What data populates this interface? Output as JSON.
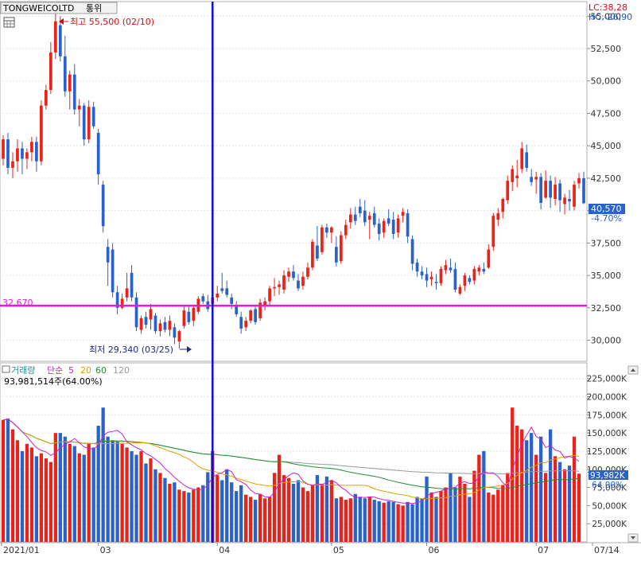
{
  "header": {
    "symbol": "TONGWEICOLTD",
    "currency": "통위",
    "lc_label": "LC:38,28",
    "hc_label": "HC:-26,90",
    "high_annotation": "최고 55,500 (02/10)",
    "low_annotation": "최저 29,340 (03/25)",
    "hline_label": "32,670",
    "last_price_label": "40,570",
    "last_change_label": "-4.70%"
  },
  "volume_header": {
    "title": "거래량",
    "ma_type": "단순",
    "ma_periods": [
      "5",
      "20",
      "60",
      "120"
    ],
    "summary": "93,981,514주(64.00%)",
    "last_volume_label": "93,982K",
    "last_pct_label": "64.00%"
  },
  "colors": {
    "up": "#e8231c",
    "down": "#2a62c9",
    "hline": "#e619d6",
    "vline": "#1010c8",
    "ma5": "#cc22cc",
    "ma20": "#e0a000",
    "ma60": "#1f8f2a",
    "ma120": "#9a9a9a",
    "label_red": "#d01010",
    "label_blue": "#1a58c8"
  },
  "chart_data": [
    {
      "type": "candlestick",
      "title": "TONGWEICOLTD 통위",
      "period": "2021/01 - 07/14",
      "ylim": [
        28500,
        56000
      ],
      "y_ticks": [
        30000,
        32500,
        35000,
        37500,
        40000,
        42500,
        45000,
        47500,
        50000,
        52500,
        55000
      ],
      "y_tick_labels": [
        "30,000",
        "32,500",
        "35,000",
        "37,500",
        "40,000",
        "42,500",
        "45,000",
        "47,500",
        "50,000",
        "52,500",
        "55,000"
      ],
      "x_labels": [
        {
          "label": "2021/01",
          "index": 0
        },
        {
          "label": "03",
          "index": 20
        },
        {
          "label": "04",
          "index": 45
        },
        {
          "label": "05",
          "index": 69
        },
        {
          "label": "06",
          "index": 89
        },
        {
          "label": "07",
          "index": 112
        },
        {
          "label": "07/14",
          "index": 121
        }
      ],
      "horizontal_line": 32670,
      "vertical_marker_index": 44,
      "high": {
        "value": 55500,
        "date": "02/10"
      },
      "low": {
        "value": 29340,
        "date": "03/25"
      },
      "last_close": 40570,
      "ohlc": [
        [
          44000,
          45800,
          43500,
          45500
        ],
        [
          45500,
          46000,
          42800,
          43300
        ],
        [
          43300,
          44500,
          42500,
          43800
        ],
        [
          43800,
          45500,
          43000,
          44800
        ],
        [
          44800,
          45300,
          42800,
          44000
        ],
        [
          44000,
          44800,
          43200,
          44500
        ],
        [
          44500,
          45700,
          43800,
          45300
        ],
        [
          45300,
          45700,
          43000,
          43800
        ],
        [
          43800,
          48500,
          43500,
          48100
        ],
        [
          48100,
          49700,
          47800,
          49300
        ],
        [
          49300,
          53000,
          49000,
          52200
        ],
        [
          52200,
          55500,
          51700,
          54600
        ],
        [
          54300,
          55000,
          51500,
          51900
        ],
        [
          51900,
          53500,
          48800,
          49200
        ],
        [
          49200,
          50800,
          47800,
          50500
        ],
        [
          50500,
          51300,
          47400,
          47800
        ],
        [
          47800,
          48600,
          46500,
          48100
        ],
        [
          48100,
          48300,
          45000,
          45500
        ],
        [
          45500,
          48500,
          45200,
          48000
        ],
        [
          48000,
          48400,
          46300,
          46500
        ],
        [
          46000,
          46300,
          42000,
          42800
        ],
        [
          42000,
          42300,
          38300,
          38800
        ],
        [
          37200,
          37800,
          34200,
          36000
        ],
        [
          37000,
          37500,
          33300,
          33700
        ],
        [
          33700,
          34200,
          32000,
          32500
        ],
        [
          32500,
          33600,
          32400,
          33200
        ],
        [
          33300,
          35200,
          33000,
          34000
        ],
        [
          35200,
          35800,
          33000,
          33300
        ],
        [
          33300,
          33700,
          30700,
          31000
        ],
        [
          30800,
          31900,
          30500,
          31700
        ],
        [
          31800,
          32200,
          30900,
          31200
        ],
        [
          31600,
          32800,
          30800,
          32400
        ],
        [
          31900,
          32100,
          30500,
          30700
        ],
        [
          30700,
          31600,
          30300,
          31300
        ],
        [
          31400,
          31800,
          30600,
          30800
        ],
        [
          30800,
          31900,
          30300,
          31500
        ],
        [
          31000,
          31300,
          29700,
          30200
        ],
        [
          29900,
          30800,
          29340,
          30700
        ],
        [
          31100,
          32600,
          30900,
          32300
        ],
        [
          32200,
          32600,
          31200,
          31400
        ],
        [
          31500,
          32700,
          31100,
          32500
        ],
        [
          32200,
          33400,
          32000,
          33200
        ],
        [
          33400,
          33600,
          32800,
          33000
        ],
        [
          33000,
          33500,
          32200,
          32400
        ],
        [
          32800,
          33500,
          32500,
          33300
        ],
        [
          33300,
          34200,
          33000,
          33600
        ],
        [
          34000,
          35200,
          33600,
          33800
        ],
        [
          34000,
          34600,
          33300,
          33500
        ],
        [
          33300,
          33600,
          32400,
          32800
        ],
        [
          32600,
          33000,
          31800,
          32000
        ],
        [
          31800,
          32200,
          30500,
          30900
        ],
        [
          31000,
          31800,
          30700,
          31500
        ],
        [
          31500,
          32400,
          31300,
          32300
        ],
        [
          32400,
          32600,
          31200,
          31400
        ],
        [
          31700,
          33200,
          31500,
          32900
        ],
        [
          32700,
          33300,
          32300,
          33000
        ],
        [
          33000,
          34200,
          32700,
          34000
        ],
        [
          34000,
          34800,
          33400,
          34100
        ],
        [
          34100,
          34600,
          33500,
          34300
        ],
        [
          33900,
          35400,
          33600,
          35000
        ],
        [
          34900,
          35600,
          34500,
          35300
        ],
        [
          35300,
          35800,
          34600,
          34800
        ],
        [
          34600,
          35100,
          33800,
          34000
        ],
        [
          34200,
          35300,
          33900,
          34900
        ],
        [
          34900,
          36000,
          34700,
          35600
        ],
        [
          35600,
          37800,
          35400,
          37600
        ],
        [
          37300,
          38800,
          36100,
          36300
        ],
        [
          36800,
          38900,
          36600,
          38700
        ],
        [
          38700,
          39000,
          37900,
          38300
        ],
        [
          38300,
          38800,
          37500,
          38700
        ],
        [
          37200,
          38000,
          35700,
          36000
        ],
        [
          36100,
          38400,
          35900,
          38100
        ],
        [
          38100,
          39300,
          37800,
          38900
        ],
        [
          39100,
          40200,
          38600,
          39700
        ],
        [
          39700,
          40300,
          38900,
          39200
        ],
        [
          40300,
          40900,
          39500,
          39800
        ],
        [
          40000,
          40800,
          38800,
          39100
        ],
        [
          39300,
          39900,
          37800,
          39600
        ],
        [
          39800,
          40300,
          38700,
          38900
        ],
        [
          39000,
          39400,
          37700,
          38200
        ],
        [
          38300,
          39400,
          37900,
          39200
        ],
        [
          39400,
          40100,
          38800,
          39000
        ],
        [
          39300,
          39900,
          37800,
          38200
        ],
        [
          38300,
          39700,
          37900,
          39400
        ],
        [
          39600,
          40200,
          39100,
          39900
        ],
        [
          39800,
          40100,
          37500,
          38000
        ],
        [
          37800,
          38100,
          35400,
          35900
        ],
        [
          36000,
          36300,
          34900,
          35300
        ],
        [
          35300,
          35700,
          34700,
          35000
        ],
        [
          35100,
          35600,
          34100,
          34600
        ],
        [
          34700,
          35300,
          34200,
          34900
        ],
        [
          34500,
          35100,
          33900,
          34400
        ],
        [
          34400,
          35700,
          34200,
          35500
        ],
        [
          35400,
          36200,
          35100,
          35800
        ],
        [
          35600,
          36300,
          35200,
          35400
        ],
        [
          35500,
          36000,
          33700,
          33900
        ],
        [
          33600,
          34300,
          33500,
          34100
        ],
        [
          34200,
          35200,
          33800,
          35000
        ],
        [
          34800,
          35000,
          34300,
          34500
        ],
        [
          34600,
          35700,
          34300,
          35500
        ],
        [
          35300,
          35800,
          35000,
          35600
        ],
        [
          35500,
          36000,
          35100,
          35300
        ],
        [
          35600,
          37400,
          35500,
          37000
        ],
        [
          37200,
          39800,
          36900,
          39600
        ],
        [
          39300,
          40200,
          38800,
          39800
        ],
        [
          39900,
          41000,
          39400,
          40900
        ],
        [
          40800,
          42700,
          40500,
          42300
        ],
        [
          42200,
          43500,
          41500,
          43200
        ],
        [
          42500,
          43900,
          41800,
          42700
        ],
        [
          43200,
          45300,
          42900,
          44800
        ],
        [
          44500,
          45100,
          43000,
          43300
        ],
        [
          42600,
          43200,
          41900,
          42200
        ],
        [
          42400,
          43000,
          41300,
          42600
        ],
        [
          42600,
          42900,
          40100,
          40600
        ],
        [
          41000,
          43100,
          40900,
          42300
        ],
        [
          42300,
          42700,
          40200,
          41000
        ],
        [
          40900,
          42600,
          40400,
          42000
        ],
        [
          42100,
          42400,
          39900,
          40800
        ],
        [
          40500,
          41300,
          39700,
          41000
        ],
        [
          40900,
          41600,
          40000,
          40700
        ],
        [
          40300,
          42300,
          40000,
          42000
        ],
        [
          42100,
          42900,
          41700,
          42500
        ],
        [
          42500,
          43000,
          40500,
          40570
        ]
      ]
    },
    {
      "type": "bar",
      "title": "거래량",
      "units": "K",
      "ylim": [
        0,
        240000
      ],
      "y_ticks": [
        25000,
        50000,
        75000,
        100000,
        125000,
        150000,
        175000,
        200000,
        225000
      ],
      "y_tick_labels": [
        "25,000K",
        "50,000K",
        "75,000K",
        "100,000K",
        "125,000K",
        "150,000K",
        "175,000K",
        "200,000K",
        "225,000K"
      ],
      "values": [
        168000,
        170000,
        155000,
        140000,
        125000,
        135000,
        130000,
        118000,
        122000,
        115000,
        110000,
        150000,
        150000,
        145000,
        135000,
        132000,
        122000,
        120000,
        135000,
        130000,
        160000,
        185000,
        145000,
        140000,
        138000,
        135000,
        130000,
        125000,
        120000,
        125000,
        108000,
        115000,
        100000,
        95000,
        88000,
        80000,
        82000,
        72000,
        70000,
        68000,
        72000,
        75000,
        78000,
        96000,
        125000,
        92000,
        85000,
        100000,
        82000,
        70000,
        78000,
        65000,
        62000,
        58000,
        66000,
        60000,
        62000,
        95000,
        120000,
        92000,
        88000,
        80000,
        85000,
        75000,
        70000,
        78000,
        92000,
        80000,
        90000,
        85000,
        60000,
        62000,
        58000,
        60000,
        66000,
        62000,
        60000,
        62000,
        58000,
        56000,
        54000,
        56000,
        55000,
        52000,
        50000,
        55000,
        52000,
        62000,
        60000,
        90000,
        68000,
        62000,
        70000,
        75000,
        95000,
        75000,
        90000,
        80000,
        62000,
        98000,
        120000,
        125000,
        68000,
        65000,
        72000,
        78000,
        95000,
        185000,
        160000,
        155000,
        140000,
        150000,
        120000,
        145000,
        95000,
        155000,
        118000,
        110000,
        100000,
        105000,
        145000,
        93982
      ]
    }
  ]
}
